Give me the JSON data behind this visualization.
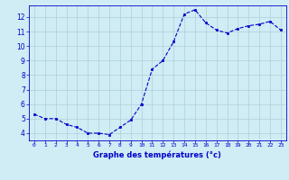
{
  "x": [
    0,
    1,
    2,
    3,
    4,
    5,
    6,
    7,
    8,
    9,
    10,
    11,
    12,
    13,
    14,
    15,
    16,
    17,
    18,
    19,
    20,
    21,
    22,
    23
  ],
  "y": [
    5.3,
    5.0,
    5.0,
    4.6,
    4.4,
    4.0,
    4.0,
    3.9,
    4.4,
    4.9,
    6.0,
    8.4,
    9.0,
    10.3,
    12.2,
    12.5,
    11.6,
    11.1,
    10.9,
    11.2,
    11.4,
    11.5,
    11.7,
    11.1
  ],
  "line_color": "#0000cc",
  "marker": "s",
  "marker_size": 2.0,
  "bg_color": "#d0ecf4",
  "grid_color": "#b0cfd8",
  "xlabel": "Graphe des températures (°c)",
  "xlabel_color": "#0000cc",
  "tick_color": "#0000cc",
  "axis_color": "#0000cc",
  "xlim": [
    -0.5,
    23.5
  ],
  "ylim": [
    3.5,
    12.8
  ],
  "yticks": [
    4,
    5,
    6,
    7,
    8,
    9,
    10,
    11,
    12
  ],
  "xticks": [
    0,
    1,
    2,
    3,
    4,
    5,
    6,
    7,
    8,
    9,
    10,
    11,
    12,
    13,
    14,
    15,
    16,
    17,
    18,
    19,
    20,
    21,
    22,
    23
  ]
}
